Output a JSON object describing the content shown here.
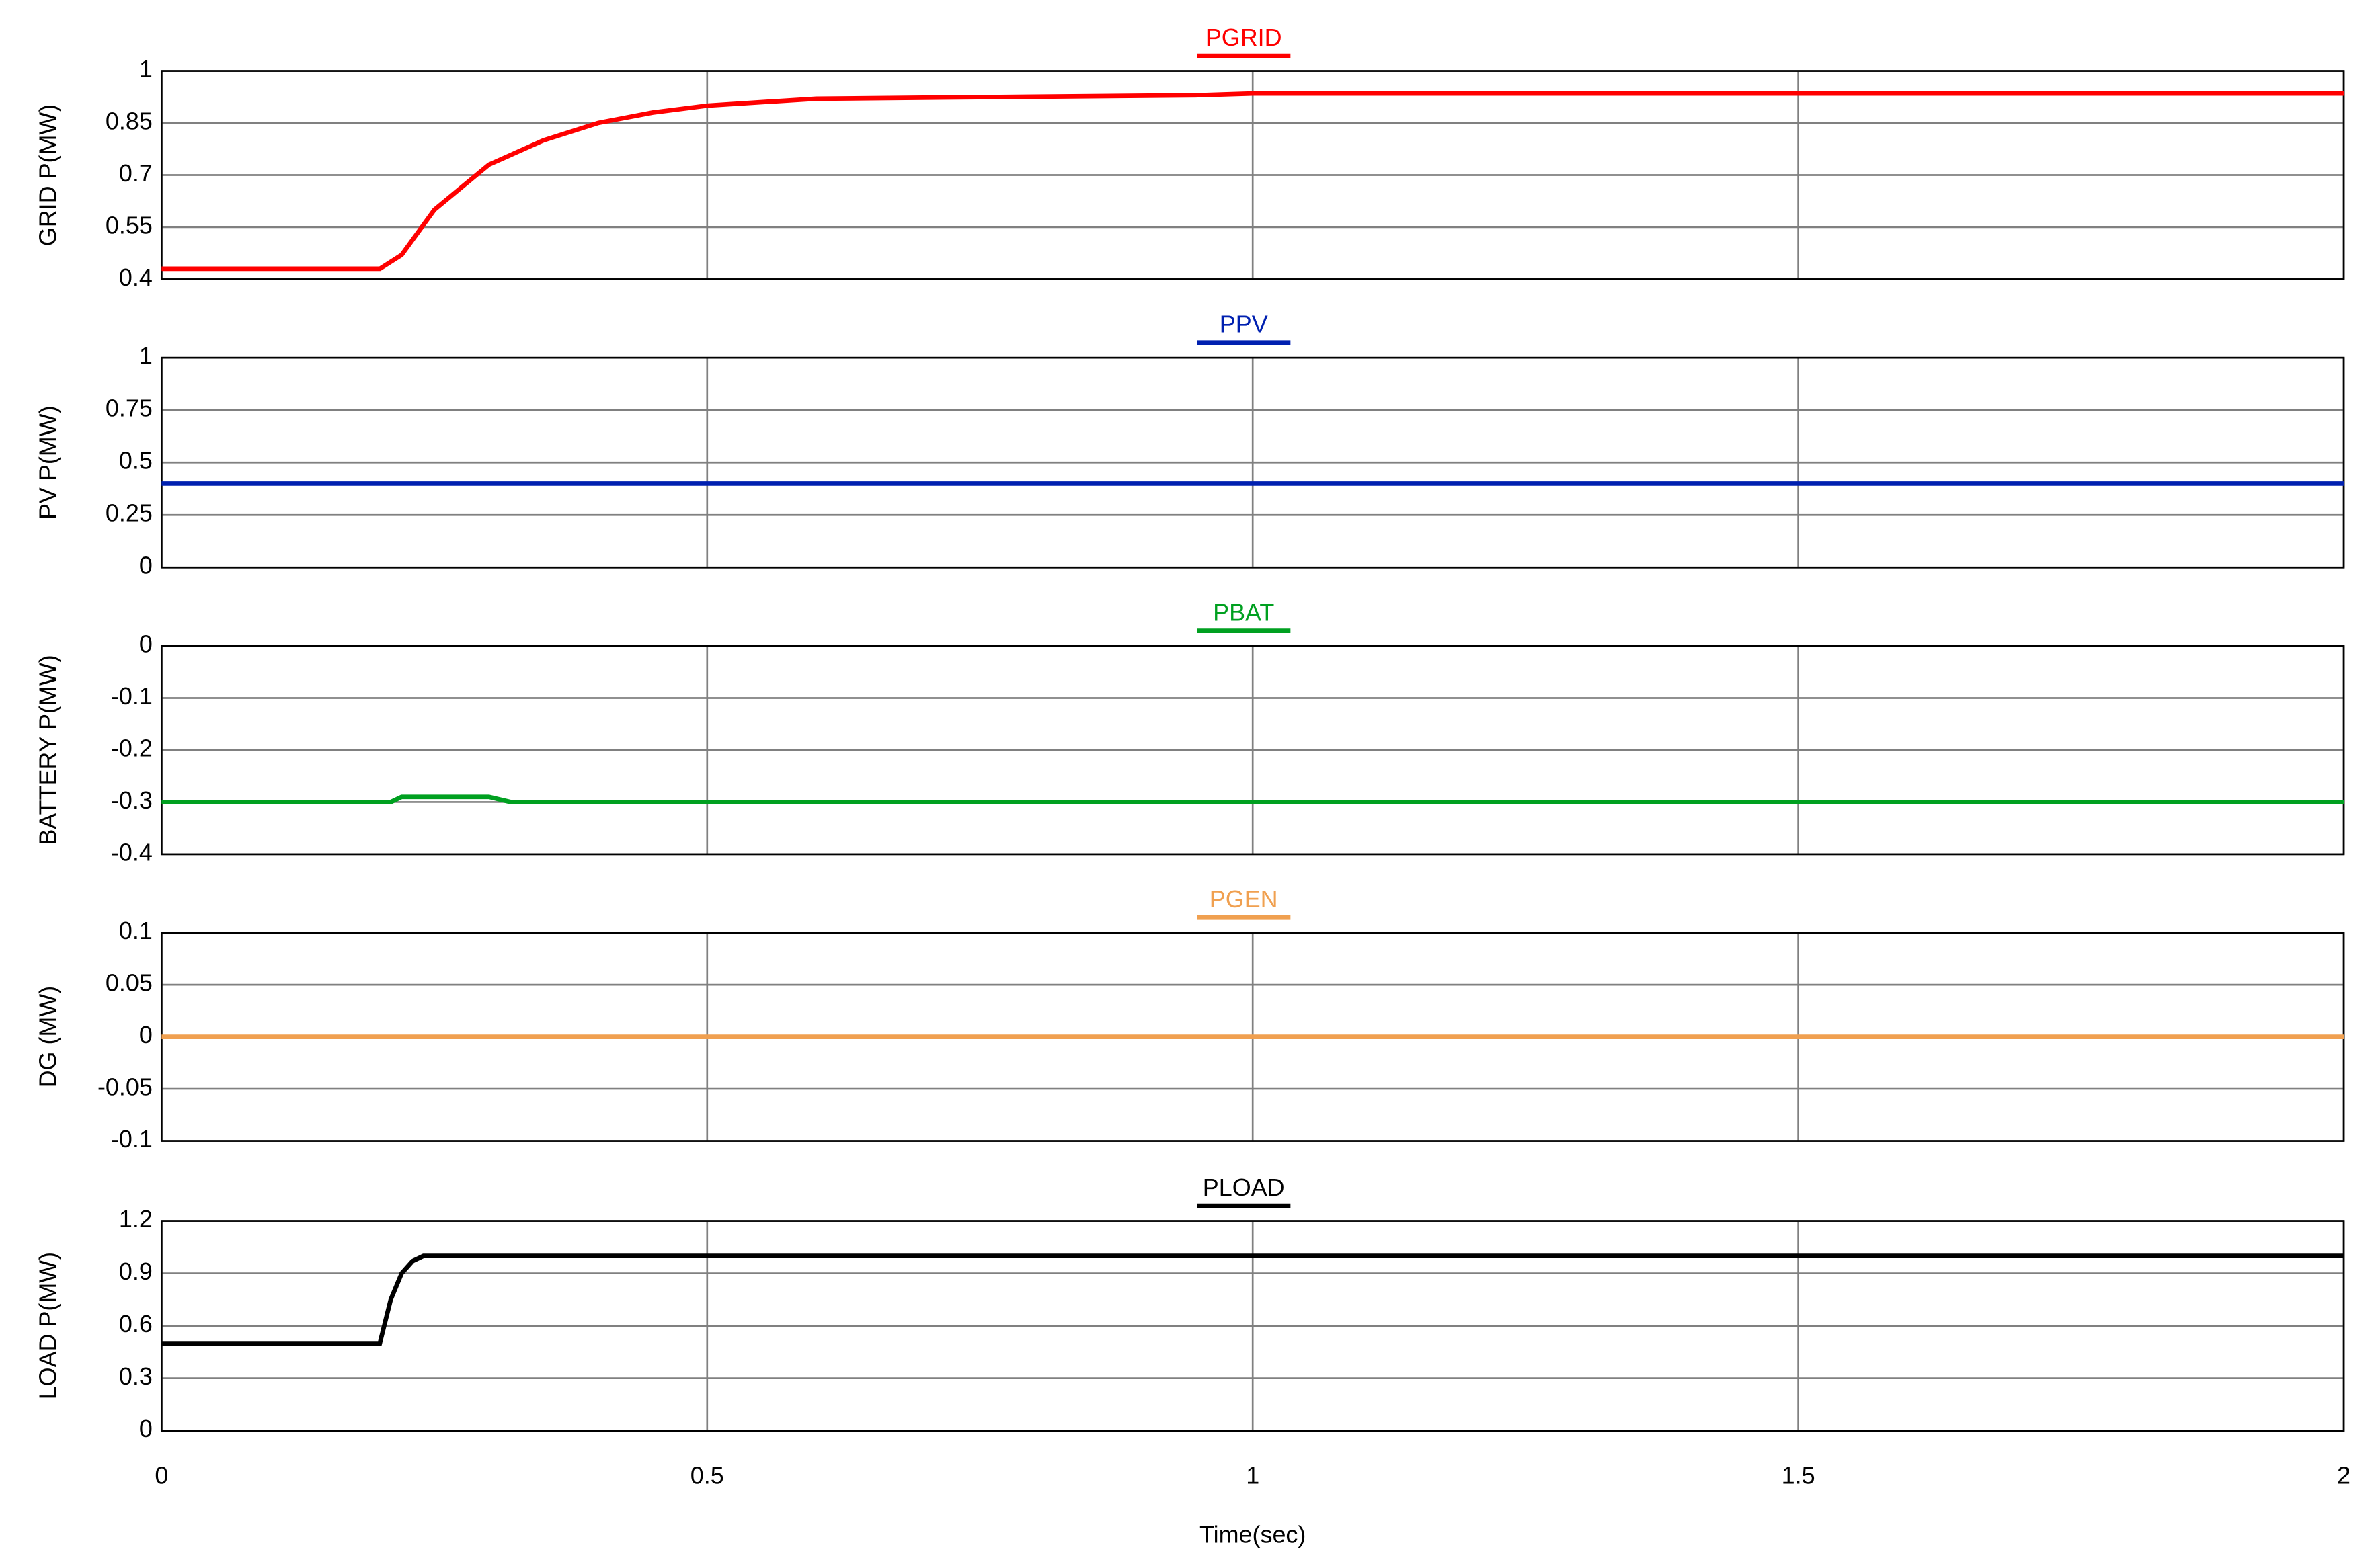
{
  "chart_data": [
    {
      "type": "line",
      "ylabel": "GRID P(MW)",
      "ylim": [
        0.4,
        1
      ],
      "yticks": [
        0.4,
        0.55,
        0.7,
        0.85,
        1
      ],
      "xlim": [
        0,
        2
      ],
      "x": [
        0,
        0.2,
        0.22,
        0.25,
        0.3,
        0.35,
        0.4,
        0.45,
        0.5,
        0.6,
        0.95,
        1,
        2
      ],
      "series": [
        {
          "name": "PGRID",
          "color": "#ff0000",
          "values": [
            0.43,
            0.43,
            0.47,
            0.6,
            0.73,
            0.8,
            0.85,
            0.88,
            0.9,
            0.92,
            0.93,
            0.935,
            0.935
          ]
        }
      ]
    },
    {
      "type": "line",
      "ylabel": "PV P(MW)",
      "ylim": [
        0,
        1
      ],
      "yticks": [
        0,
        0.25,
        0.5,
        0.75,
        1
      ],
      "xlim": [
        0,
        2
      ],
      "x": [
        0,
        2
      ],
      "series": [
        {
          "name": "PPV",
          "color": "#0020b0",
          "values": [
            0.4,
            0.4
          ]
        }
      ]
    },
    {
      "type": "line",
      "ylabel": "BATTERY P(MW)",
      "ylim": [
        -0.4,
        0
      ],
      "yticks": [
        -0.4,
        -0.3,
        -0.2,
        -0.1,
        0
      ],
      "xlim": [
        0,
        2
      ],
      "x": [
        0,
        0.21,
        0.22,
        0.3,
        0.32,
        2
      ],
      "series": [
        {
          "name": "PBAT",
          "color": "#00a020",
          "values": [
            -0.3,
            -0.3,
            -0.29,
            -0.29,
            -0.3,
            -0.3
          ]
        }
      ]
    },
    {
      "type": "line",
      "ylabel": "DG (MW)",
      "ylim": [
        -0.1,
        0.1
      ],
      "yticks": [
        -0.1,
        -0.05,
        0,
        0.05,
        0.1
      ],
      "xlim": [
        0,
        2
      ],
      "x": [
        0,
        2
      ],
      "series": [
        {
          "name": "PGEN",
          "color": "#f0a050",
          "values": [
            0,
            0
          ]
        }
      ]
    },
    {
      "type": "line",
      "ylabel": "LOAD P(MW)",
      "xlabel": "Time(sec)",
      "ylim": [
        0,
        1.2
      ],
      "yticks": [
        0,
        0.3,
        0.6,
        0.9,
        1.2
      ],
      "xlim": [
        0,
        2
      ],
      "xticks": [
        0,
        0.5,
        1,
        1.5,
        2
      ],
      "x": [
        0,
        0.2,
        0.21,
        0.22,
        0.23,
        0.24,
        2
      ],
      "series": [
        {
          "name": "PLOAD",
          "color": "#000000",
          "values": [
            0.5,
            0.5,
            0.75,
            0.9,
            0.97,
            1,
            1
          ]
        }
      ]
    }
  ]
}
